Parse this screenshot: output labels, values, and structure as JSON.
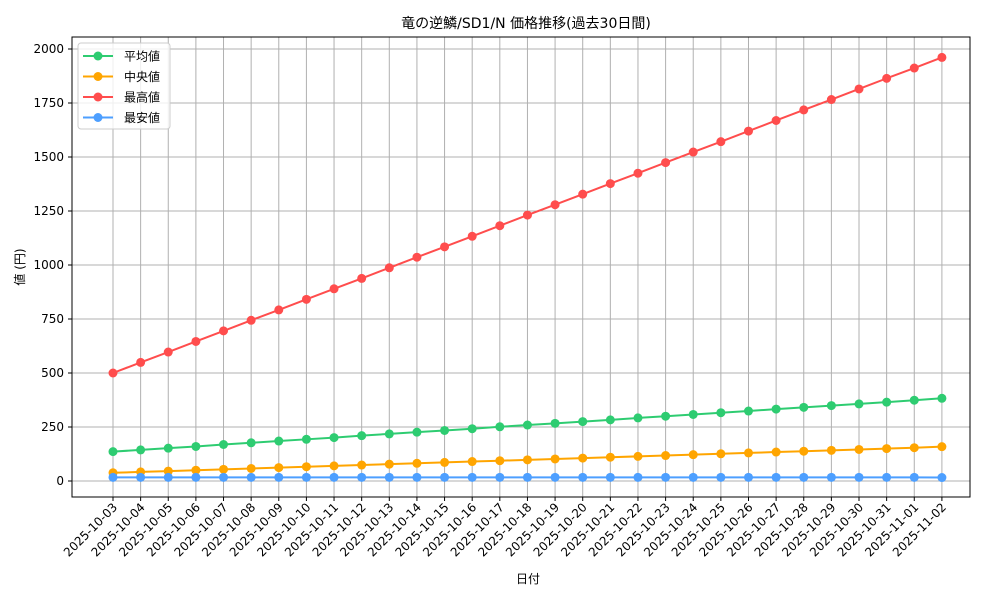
{
  "chart_data": {
    "type": "line",
    "title": "竜の逆鱗/SD1/N 価格推移(過去30日間)",
    "xlabel": "日付",
    "ylabel": "値 (円)",
    "ylim": [
      -75,
      2050
    ],
    "yticks": [
      0,
      250,
      500,
      750,
      1000,
      1250,
      1500,
      1750,
      2000
    ],
    "grid": true,
    "legend_position": "upper left",
    "categories": [
      "2025-10-03",
      "2025-10-04",
      "2025-10-05",
      "2025-10-06",
      "2025-10-07",
      "2025-10-08",
      "2025-10-09",
      "2025-10-10",
      "2025-10-11",
      "2025-10-12",
      "2025-10-13",
      "2025-10-14",
      "2025-10-15",
      "2025-10-16",
      "2025-10-17",
      "2025-10-18",
      "2025-10-19",
      "2025-10-20",
      "2025-10-21",
      "2025-10-22",
      "2025-10-23",
      "2025-10-24",
      "2025-10-25",
      "2025-10-26",
      "2025-10-27",
      "2025-10-28",
      "2025-10-29",
      "2025-10-30",
      "2025-10-31",
      "2025-11-01",
      "2025-11-02"
    ],
    "series": [
      {
        "name": "平均値",
        "color": "#2ecc71",
        "values": [
          136,
          144,
          152,
          160,
          169,
          177,
          185,
          193,
          201,
          210,
          218,
          226,
          234,
          242,
          251,
          259,
          267,
          275,
          283,
          292,
          300,
          308,
          316,
          324,
          333,
          341,
          349,
          357,
          365,
          374,
          383
        ]
      },
      {
        "name": "中央値",
        "color": "#ffa500",
        "values": [
          38,
          42,
          46,
          50,
          54,
          58,
          62,
          66,
          70,
          74,
          78,
          82,
          86,
          90,
          94,
          98,
          102,
          106,
          110,
          114,
          118,
          122,
          126,
          130,
          134,
          138,
          142,
          146,
          150,
          154,
          159
        ]
      },
      {
        "name": "最高値",
        "color": "#ff4d4d",
        "values": [
          500,
          549,
          597,
          646,
          695,
          744,
          792,
          841,
          890,
          938,
          987,
          1036,
          1084,
          1133,
          1182,
          1231,
          1279,
          1328,
          1377,
          1425,
          1474,
          1523,
          1571,
          1620,
          1669,
          1718,
          1766,
          1815,
          1864,
          1912,
          1961
        ]
      },
      {
        "name": "最安値",
        "color": "#4d9fff",
        "values": [
          17,
          17,
          17,
          17,
          17,
          17,
          17,
          17,
          17,
          17,
          17,
          17,
          17,
          17,
          17,
          17,
          17,
          17,
          17,
          17,
          17,
          17,
          17,
          17,
          17,
          17,
          17,
          17,
          17,
          17,
          16
        ]
      }
    ]
  }
}
